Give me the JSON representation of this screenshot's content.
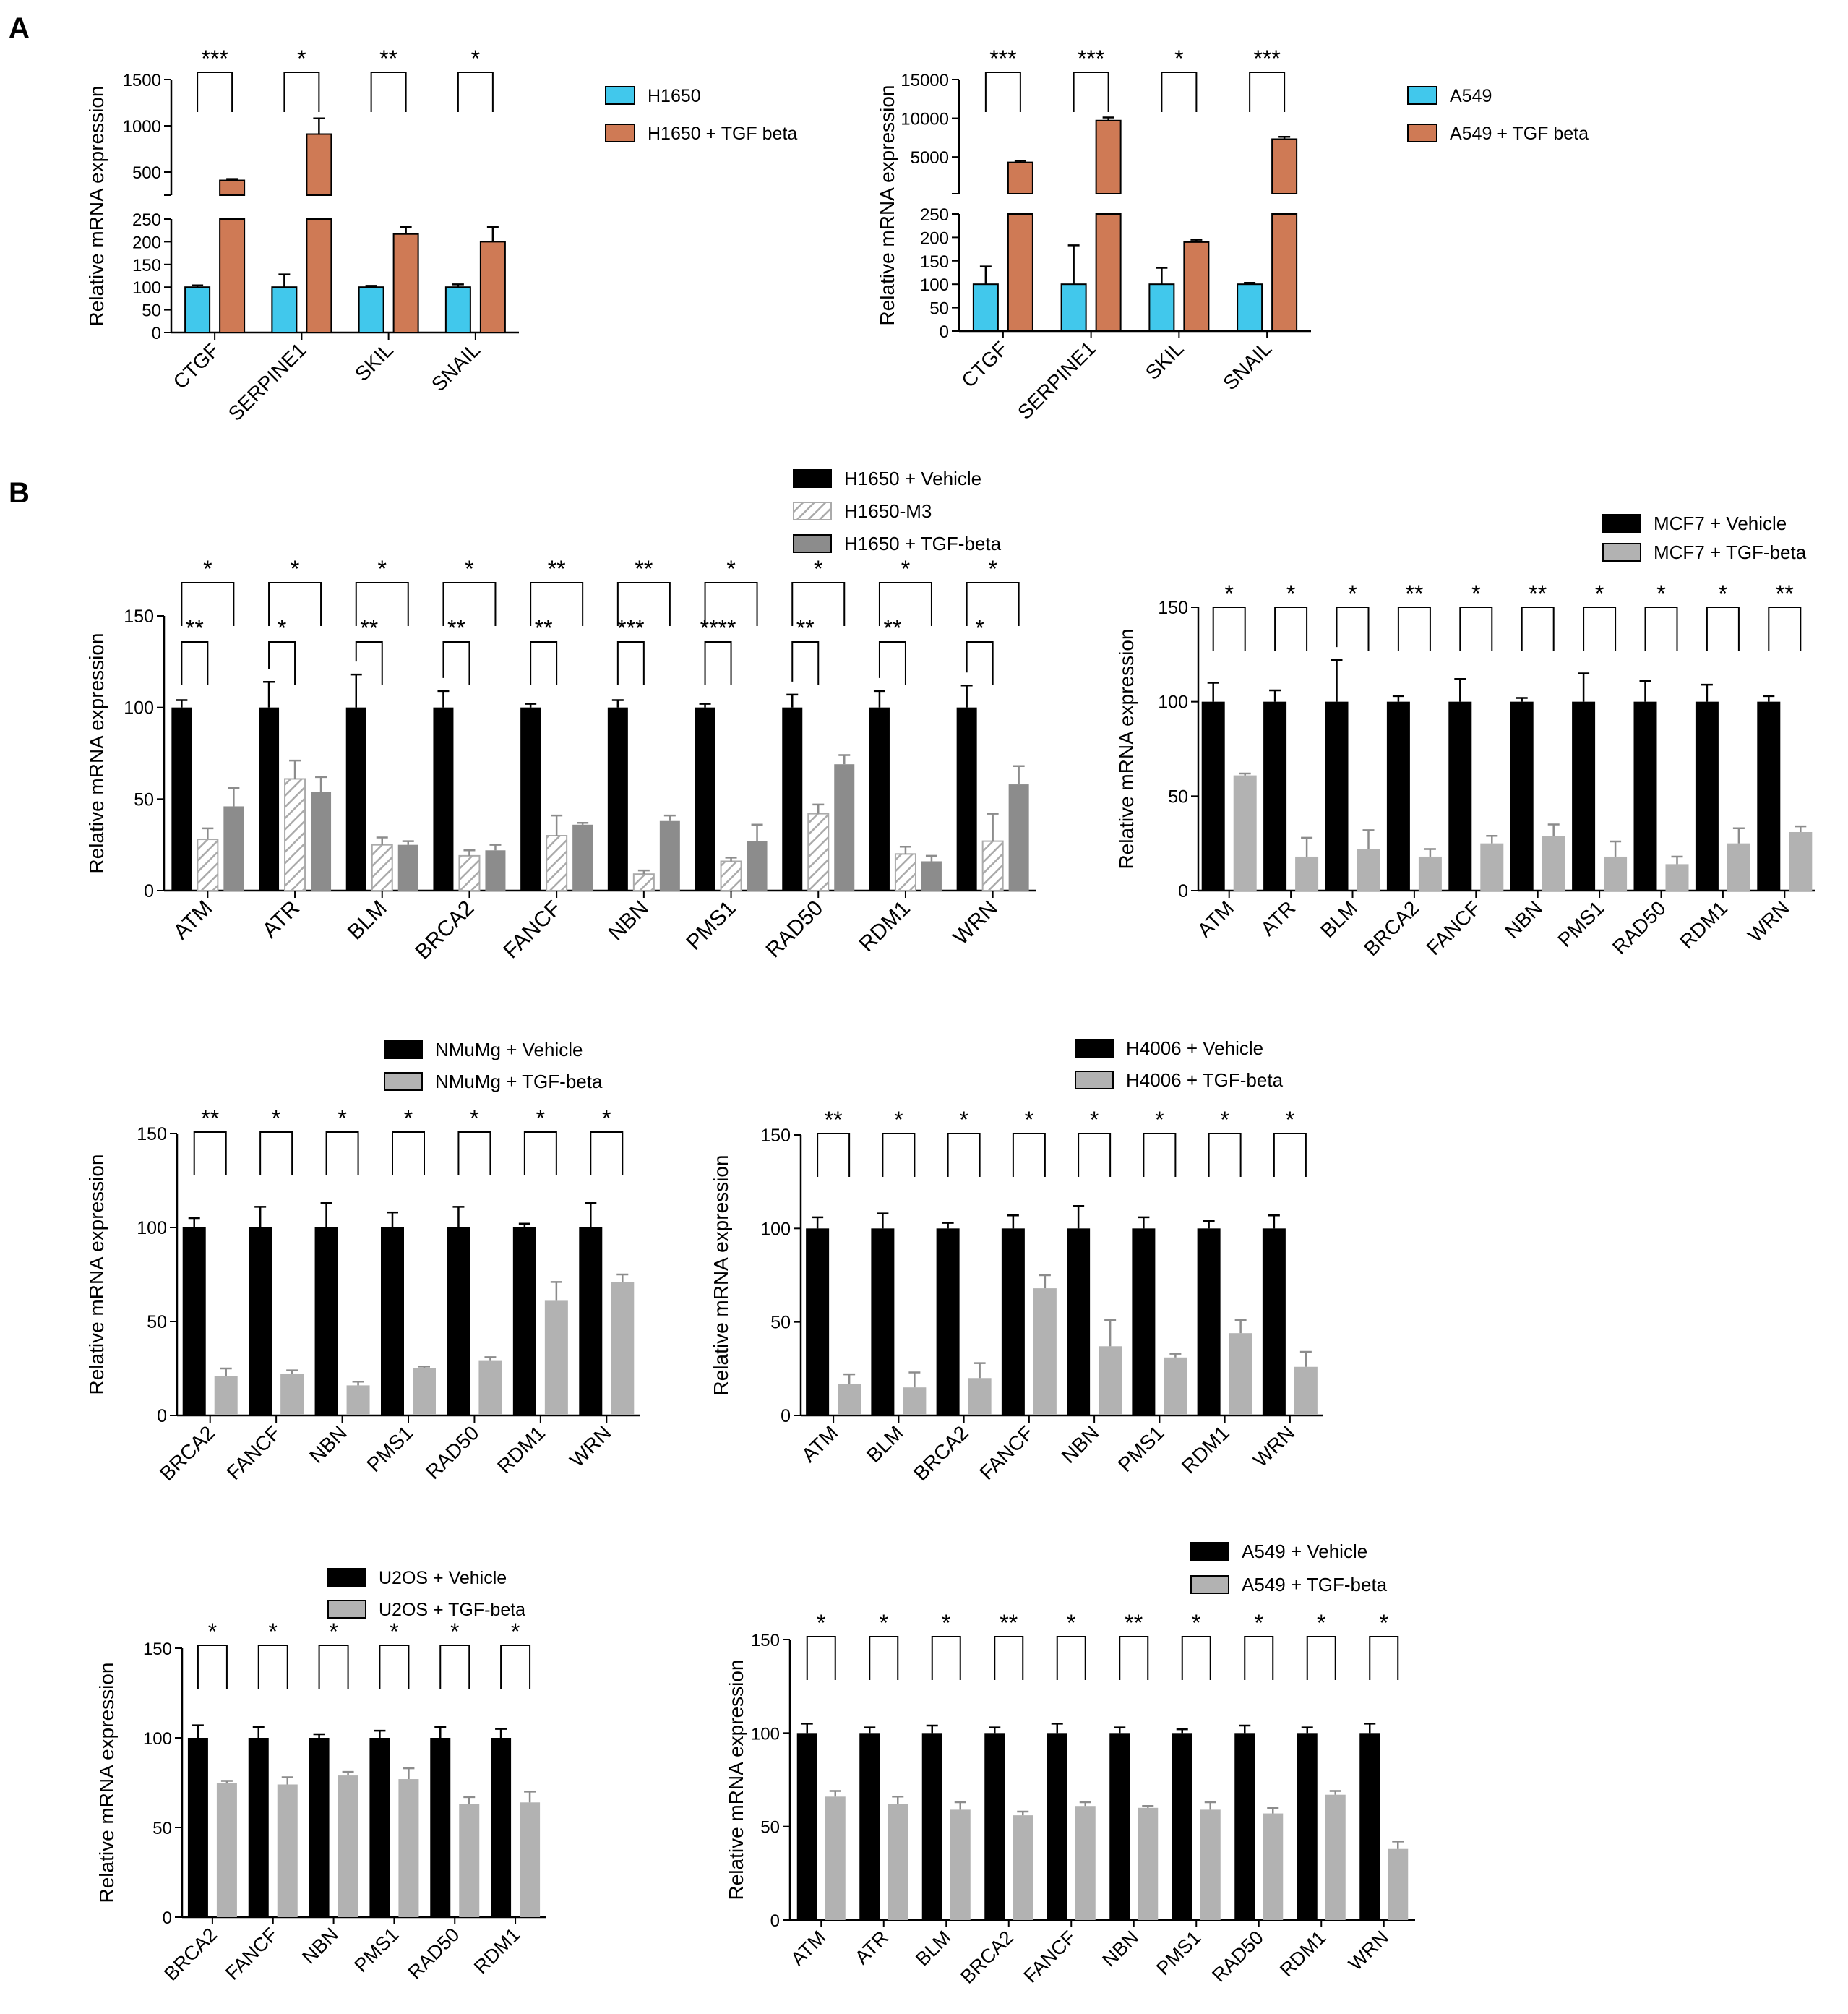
{
  "panel_labels": [
    "A",
    "B"
  ],
  "colors": {
    "h1650_blue": "#41c8ec",
    "tgf_orange": "#cf7a55",
    "vehicle_black": "#000000",
    "tgf_gray": "#b2b2b2",
    "tgf_dark_gray": "#8c8c8c",
    "m3_hatch_fill": "#ffffff",
    "m3_hatch_stroke": "#aaaaaa"
  },
  "chart_data": [
    {
      "id": "A-left",
      "type": "bar",
      "broken_axis": true,
      "ylabel": "Relative mRNA expression",
      "categories": [
        "CTGF",
        "SERPINE1",
        "SKIL",
        "SNAIL"
      ],
      "lower_ticks": [
        0,
        50,
        100,
        150,
        200,
        250
      ],
      "upper_ticks": [
        500,
        1000,
        1500
      ],
      "lower_ylim": [
        0,
        250
      ],
      "upper_ylim": [
        250,
        1500
      ],
      "series": [
        {
          "name": "H1650",
          "style": "h1650_blue",
          "values": [
            100,
            100,
            100,
            100
          ],
          "errors": [
            4,
            28,
            3,
            6
          ]
        },
        {
          "name": "H1650 + TGF beta",
          "style": "tgf_orange",
          "values": [
            410,
            910,
            217,
            200
          ],
          "errors": [
            15,
            170,
            15,
            32
          ]
        }
      ],
      "comparisons": [
        {
          "category": 0,
          "from": 0,
          "to": 1,
          "label": "***"
        },
        {
          "category": 1,
          "from": 0,
          "to": 1,
          "label": "*"
        },
        {
          "category": 2,
          "from": 0,
          "to": 1,
          "label": "**"
        },
        {
          "category": 3,
          "from": 0,
          "to": 1,
          "label": "*"
        }
      ]
    },
    {
      "id": "A-right",
      "type": "bar",
      "broken_axis": true,
      "ylabel": "Relative mRNA expression",
      "categories": [
        "CTGF",
        "SERPINE1",
        "SKIL",
        "SNAIL"
      ],
      "lower_ticks": [
        0,
        50,
        100,
        150,
        200,
        250
      ],
      "upper_ticks": [
        5000,
        10000,
        15000
      ],
      "lower_ylim": [
        0,
        250
      ],
      "upper_ylim": [
        250,
        15000
      ],
      "series": [
        {
          "name": "A549",
          "style": "h1650_blue",
          "values": [
            100,
            100,
            100,
            100
          ],
          "errors": [
            38,
            83,
            35,
            3
          ]
        },
        {
          "name": "A549 + TGF beta",
          "style": "tgf_orange",
          "values": [
            4300,
            9700,
            190,
            7300
          ],
          "errors": [
            200,
            400,
            5,
            300
          ]
        }
      ],
      "comparisons": [
        {
          "category": 0,
          "from": 0,
          "to": 1,
          "label": "***"
        },
        {
          "category": 1,
          "from": 0,
          "to": 1,
          "label": "***"
        },
        {
          "category": 2,
          "from": 0,
          "to": 1,
          "label": "*"
        },
        {
          "category": 3,
          "from": 0,
          "to": 1,
          "label": "***"
        }
      ]
    },
    {
      "id": "B-h1650",
      "type": "bar",
      "ylabel": "Relative mRNA expression",
      "categories": [
        "ATM",
        "ATR",
        "BLM",
        "BRCA2",
        "FANCF",
        "NBN",
        "PMS1",
        "RAD50",
        "RDM1",
        "WRN"
      ],
      "yticks": [
        0,
        50,
        100,
        150
      ],
      "ylim": [
        0,
        150
      ],
      "series": [
        {
          "name": "H1650 + Vehicle",
          "style": "vehicle_black",
          "values": [
            100,
            100,
            100,
            100,
            100,
            100,
            100,
            100,
            100,
            100
          ],
          "errors": [
            4,
            14,
            18,
            9,
            2,
            4,
            2,
            7,
            9,
            12
          ]
        },
        {
          "name": "H1650-M3",
          "style": "hatch",
          "values": [
            28,
            61,
            25,
            19,
            30,
            9,
            16,
            42,
            20,
            27
          ],
          "errors": [
            6,
            10,
            4,
            3,
            11,
            2,
            2,
            5,
            4,
            15
          ]
        },
        {
          "name": "H1650 + TGF-beta",
          "style": "tgf_dark_gray",
          "values": [
            46,
            54,
            25,
            22,
            36,
            38,
            27,
            69,
            16,
            58
          ],
          "errors": [
            10,
            8,
            2,
            3,
            1,
            3,
            9,
            5,
            3,
            10
          ]
        }
      ],
      "comparisons": [
        {
          "category": 0,
          "from": 0,
          "to": 1,
          "label": "**"
        },
        {
          "category": 0,
          "from": 0,
          "to": 2,
          "label": "*"
        },
        {
          "category": 1,
          "from": 0,
          "to": 1,
          "label": "*"
        },
        {
          "category": 1,
          "from": 0,
          "to": 2,
          "label": "*"
        },
        {
          "category": 2,
          "from": 0,
          "to": 1,
          "label": "**"
        },
        {
          "category": 2,
          "from": 0,
          "to": 2,
          "label": "*"
        },
        {
          "category": 3,
          "from": 0,
          "to": 1,
          "label": "**"
        },
        {
          "category": 3,
          "from": 0,
          "to": 2,
          "label": "*"
        },
        {
          "category": 4,
          "from": 0,
          "to": 1,
          "label": "**"
        },
        {
          "category": 4,
          "from": 0,
          "to": 2,
          "label": "**"
        },
        {
          "category": 5,
          "from": 0,
          "to": 1,
          "label": "***"
        },
        {
          "category": 5,
          "from": 0,
          "to": 2,
          "label": "**"
        },
        {
          "category": 6,
          "from": 0,
          "to": 1,
          "label": "****"
        },
        {
          "category": 6,
          "from": 0,
          "to": 2,
          "label": "*"
        },
        {
          "category": 7,
          "from": 0,
          "to": 1,
          "label": "**"
        },
        {
          "category": 7,
          "from": 0,
          "to": 2,
          "label": "*"
        },
        {
          "category": 8,
          "from": 0,
          "to": 1,
          "label": "**"
        },
        {
          "category": 8,
          "from": 0,
          "to": 2,
          "label": "*"
        },
        {
          "category": 9,
          "from": 0,
          "to": 1,
          "label": "*"
        },
        {
          "category": 9,
          "from": 0,
          "to": 2,
          "label": "*"
        }
      ]
    },
    {
      "id": "B-mcf7",
      "type": "bar",
      "ylabel": "Relative mRNA expression",
      "categories": [
        "ATM",
        "ATR",
        "BLM",
        "BRCA2",
        "FANCF",
        "NBN",
        "PMS1",
        "RAD50",
        "RDM1",
        "WRN"
      ],
      "yticks": [
        0,
        50,
        100,
        150
      ],
      "ylim": [
        0,
        150
      ],
      "series": [
        {
          "name": "MCF7 + Vehicle",
          "style": "vehicle_black",
          "values": [
            100,
            100,
            100,
            100,
            100,
            100,
            100,
            100,
            100,
            100
          ],
          "errors": [
            10,
            6,
            22,
            3,
            12,
            2,
            15,
            11,
            9,
            3
          ]
        },
        {
          "name": "MCF7 + TGF-beta",
          "style": "tgf_gray",
          "values": [
            61,
            18,
            22,
            18,
            25,
            29,
            18,
            14,
            25,
            31
          ],
          "errors": [
            1,
            10,
            10,
            4,
            4,
            6,
            8,
            4,
            8,
            3
          ]
        }
      ],
      "comparisons": [
        {
          "category": 0,
          "from": 0,
          "to": 1,
          "label": "*"
        },
        {
          "category": 1,
          "from": 0,
          "to": 1,
          "label": "*"
        },
        {
          "category": 2,
          "from": 0,
          "to": 1,
          "label": "*"
        },
        {
          "category": 3,
          "from": 0,
          "to": 1,
          "label": "**"
        },
        {
          "category": 4,
          "from": 0,
          "to": 1,
          "label": "*"
        },
        {
          "category": 5,
          "from": 0,
          "to": 1,
          "label": "**"
        },
        {
          "category": 6,
          "from": 0,
          "to": 1,
          "label": "*"
        },
        {
          "category": 7,
          "from": 0,
          "to": 1,
          "label": "*"
        },
        {
          "category": 8,
          "from": 0,
          "to": 1,
          "label": "*"
        },
        {
          "category": 9,
          "from": 0,
          "to": 1,
          "label": "**"
        }
      ]
    },
    {
      "id": "B-nmumg",
      "type": "bar",
      "ylabel": "Relative mRNA expression",
      "categories": [
        "BRCA2",
        "FANCF",
        "NBN",
        "PMS1",
        "RAD50",
        "RDM1",
        "WRN"
      ],
      "yticks": [
        0,
        50,
        100,
        150
      ],
      "ylim": [
        0,
        150
      ],
      "series": [
        {
          "name": "NMuMg + Vehicle",
          "style": "vehicle_black",
          "values": [
            100,
            100,
            100,
            100,
            100,
            100,
            100
          ],
          "errors": [
            5,
            11,
            13,
            8,
            11,
            2,
            13
          ]
        },
        {
          "name": "NMuMg + TGF-beta",
          "style": "tgf_gray",
          "values": [
            21,
            22,
            16,
            25,
            29,
            61,
            71
          ],
          "errors": [
            4,
            2,
            2,
            1,
            2,
            10,
            4
          ]
        }
      ],
      "comparisons": [
        {
          "category": 0,
          "from": 0,
          "to": 1,
          "label": "**"
        },
        {
          "category": 1,
          "from": 0,
          "to": 1,
          "label": "*"
        },
        {
          "category": 2,
          "from": 0,
          "to": 1,
          "label": "*"
        },
        {
          "category": 3,
          "from": 0,
          "to": 1,
          "label": "*"
        },
        {
          "category": 4,
          "from": 0,
          "to": 1,
          "label": "*"
        },
        {
          "category": 5,
          "from": 0,
          "to": 1,
          "label": "*"
        },
        {
          "category": 6,
          "from": 0,
          "to": 1,
          "label": "*"
        }
      ]
    },
    {
      "id": "B-h4006",
      "type": "bar",
      "ylabel": "Relative mRNA expression",
      "categories": [
        "ATM",
        "BLM",
        "BRCA2",
        "FANCF",
        "NBN",
        "PMS1",
        "RDM1",
        "WRN"
      ],
      "yticks": [
        0,
        50,
        100,
        150
      ],
      "ylim": [
        0,
        150
      ],
      "series": [
        {
          "name": "H4006 + Vehicle",
          "style": "vehicle_black",
          "values": [
            100,
            100,
            100,
            100,
            100,
            100,
            100,
            100
          ],
          "errors": [
            6,
            8,
            3,
            7,
            12,
            6,
            4,
            7
          ]
        },
        {
          "name": "H4006 + TGF-beta",
          "style": "tgf_gray",
          "values": [
            17,
            15,
            20,
            68,
            37,
            31,
            44,
            26
          ],
          "errors": [
            5,
            8,
            8,
            7,
            14,
            2,
            7,
            8
          ]
        }
      ],
      "comparisons": [
        {
          "category": 0,
          "from": 0,
          "to": 1,
          "label": "**"
        },
        {
          "category": 1,
          "from": 0,
          "to": 1,
          "label": "*"
        },
        {
          "category": 2,
          "from": 0,
          "to": 1,
          "label": "*"
        },
        {
          "category": 3,
          "from": 0,
          "to": 1,
          "label": "*"
        },
        {
          "category": 4,
          "from": 0,
          "to": 1,
          "label": "*"
        },
        {
          "category": 5,
          "from": 0,
          "to": 1,
          "label": "*"
        },
        {
          "category": 6,
          "from": 0,
          "to": 1,
          "label": "*"
        },
        {
          "category": 7,
          "from": 0,
          "to": 1,
          "label": "*"
        }
      ]
    },
    {
      "id": "B-u2os",
      "type": "bar",
      "ylabel": "Relative mRNA expression",
      "categories": [
        "BRCA2",
        "FANCF",
        "NBN",
        "PMS1",
        "RAD50",
        "RDM1"
      ],
      "yticks": [
        0,
        50,
        100,
        150
      ],
      "ylim": [
        0,
        150
      ],
      "series": [
        {
          "name": "U2OS + Vehicle",
          "style": "vehicle_black",
          "values": [
            100,
            100,
            100,
            100,
            100,
            100
          ],
          "errors": [
            7,
            6,
            2,
            4,
            6,
            5
          ]
        },
        {
          "name": "U2OS + TGF-beta",
          "style": "tgf_gray",
          "values": [
            75,
            74,
            79,
            77,
            63,
            64
          ],
          "errors": [
            1,
            4,
            2,
            6,
            4,
            6
          ]
        }
      ],
      "comparisons": [
        {
          "category": 0,
          "from": 0,
          "to": 1,
          "label": "*"
        },
        {
          "category": 1,
          "from": 0,
          "to": 1,
          "label": "*"
        },
        {
          "category": 2,
          "from": 0,
          "to": 1,
          "label": "*"
        },
        {
          "category": 3,
          "from": 0,
          "to": 1,
          "label": "*"
        },
        {
          "category": 4,
          "from": 0,
          "to": 1,
          "label": "*"
        },
        {
          "category": 5,
          "from": 0,
          "to": 1,
          "label": "*"
        }
      ]
    },
    {
      "id": "B-a549",
      "type": "bar",
      "ylabel": "Relative mRNA expression",
      "categories": [
        "ATM",
        "ATR",
        "BLM",
        "BRCA2",
        "FANCF",
        "NBN",
        "PMS1",
        "RAD50",
        "RDM1",
        "WRN"
      ],
      "yticks": [
        0,
        50,
        100,
        150
      ],
      "ylim": [
        0,
        150
      ],
      "series": [
        {
          "name": "A549 + Vehicle",
          "style": "vehicle_black",
          "values": [
            100,
            100,
            100,
            100,
            100,
            100,
            100,
            100,
            100,
            100
          ],
          "errors": [
            5,
            3,
            4,
            3,
            5,
            3,
            2,
            4,
            3,
            5
          ]
        },
        {
          "name": "A549 + TGF-beta",
          "style": "tgf_gray",
          "values": [
            66,
            62,
            59,
            56,
            61,
            60,
            59,
            57,
            67,
            38
          ],
          "errors": [
            3,
            4,
            4,
            2,
            2,
            1,
            4,
            3,
            2,
            4
          ]
        }
      ],
      "comparisons": [
        {
          "category": 0,
          "from": 0,
          "to": 1,
          "label": "*"
        },
        {
          "category": 1,
          "from": 0,
          "to": 1,
          "label": "*"
        },
        {
          "category": 2,
          "from": 0,
          "to": 1,
          "label": "*"
        },
        {
          "category": 3,
          "from": 0,
          "to": 1,
          "label": "**"
        },
        {
          "category": 4,
          "from": 0,
          "to": 1,
          "label": "*"
        },
        {
          "category": 5,
          "from": 0,
          "to": 1,
          "label": "**"
        },
        {
          "category": 6,
          "from": 0,
          "to": 1,
          "label": "*"
        },
        {
          "category": 7,
          "from": 0,
          "to": 1,
          "label": "*"
        },
        {
          "category": 8,
          "from": 0,
          "to": 1,
          "label": "*"
        },
        {
          "category": 9,
          "from": 0,
          "to": 1,
          "label": "*"
        }
      ]
    }
  ]
}
